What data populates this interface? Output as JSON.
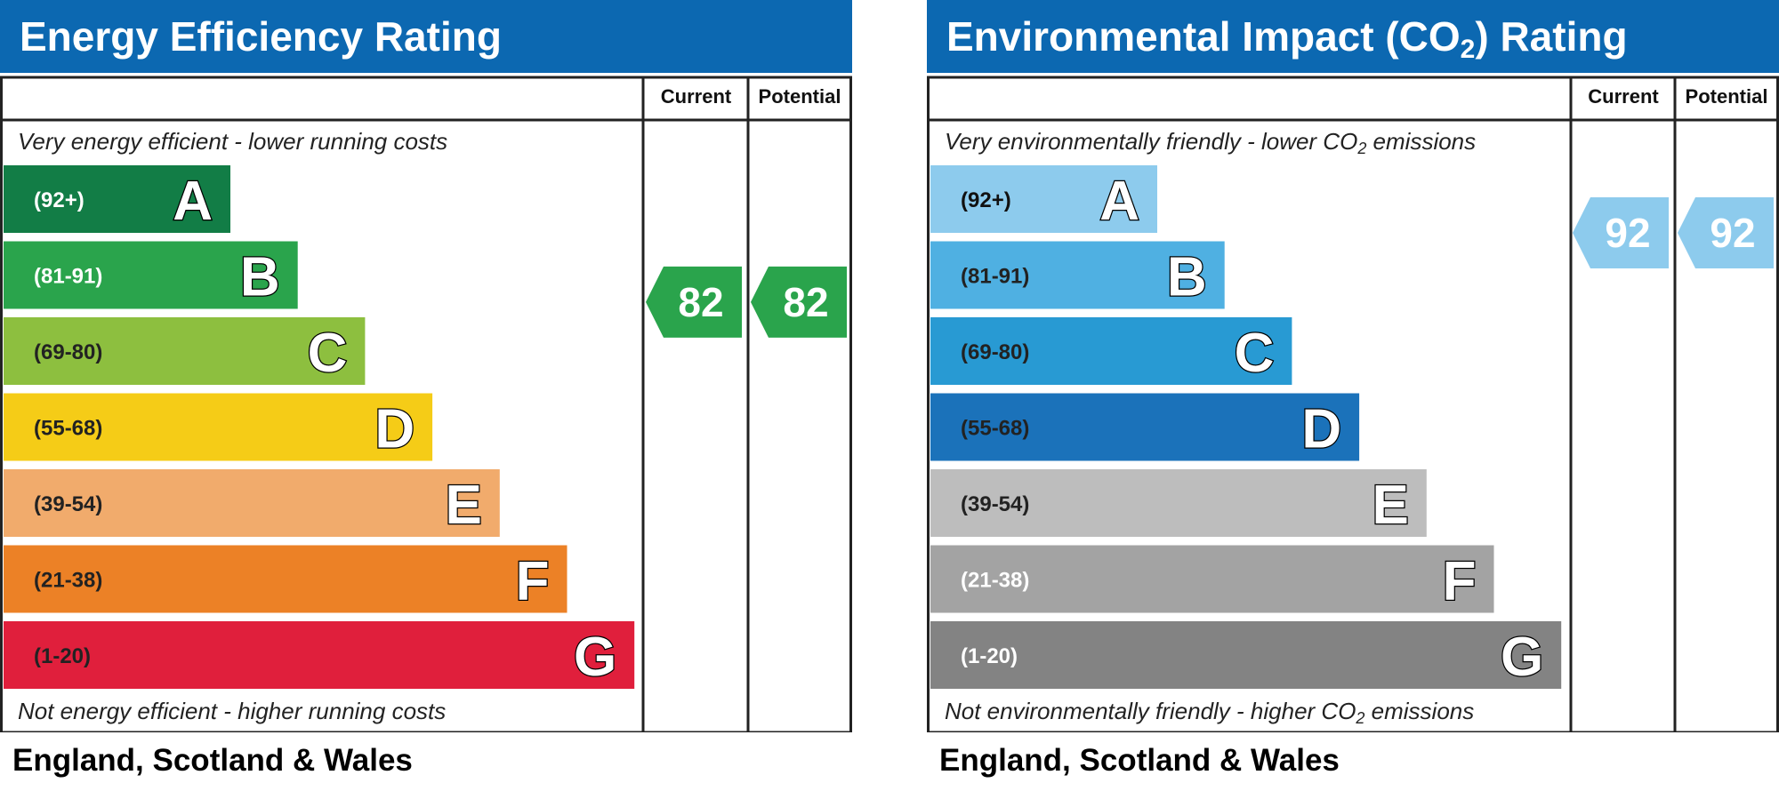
{
  "chart_data": [
    {
      "type": "bar",
      "title": "Energy Efficiency Rating",
      "columns": [
        "Current",
        "Potential"
      ],
      "top_note": "Very energy efficient - lower running costs",
      "bottom_note": "Not energy efficient - higher running costs",
      "footer": "England, Scotland & Wales",
      "bands": [
        {
          "letter": "A",
          "range": "(92+)",
          "min": 92,
          "max": 100,
          "color": "#127d46",
          "label_color": "#ffffff"
        },
        {
          "letter": "B",
          "range": "(81-91)",
          "min": 81,
          "max": 91,
          "color": "#2aa44c",
          "label_color": "#ffffff"
        },
        {
          "letter": "C",
          "range": "(69-80)",
          "min": 69,
          "max": 80,
          "color": "#8dbf3f",
          "label_color": "#222222"
        },
        {
          "letter": "D",
          "range": "(55-68)",
          "min": 55,
          "max": 68,
          "color": "#f5cc17",
          "label_color": "#222222"
        },
        {
          "letter": "E",
          "range": "(39-54)",
          "min": 39,
          "max": 54,
          "color": "#f1ab6c",
          "label_color": "#222222"
        },
        {
          "letter": "F",
          "range": "(21-38)",
          "min": 21,
          "max": 38,
          "color": "#ec8126",
          "label_color": "#222222"
        },
        {
          "letter": "G",
          "range": "(1-20)",
          "min": 1,
          "max": 20,
          "color": "#e01f3c",
          "label_color": "#222222"
        }
      ],
      "current": 82,
      "potential": 82,
      "current_color": "#2aa44c",
      "potential_color": "#2aa44c"
    },
    {
      "type": "bar",
      "title": "Environmental Impact (CO",
      "title_sub": "2",
      "title_suffix": ") Rating",
      "columns": [
        "Current",
        "Potential"
      ],
      "top_note": "Very environmentally friendly - lower CO",
      "top_note_sub": "2",
      "top_note_suffix": " emissions",
      "bottom_note": "Not environmentally friendly - higher CO",
      "bottom_note_sub": "2",
      "bottom_note_suffix": " emissions",
      "footer": "England, Scotland & Wales",
      "bands": [
        {
          "letter": "A",
          "range": "(92+)",
          "min": 92,
          "max": 100,
          "color": "#8dcbed",
          "label_color": "#111111"
        },
        {
          "letter": "B",
          "range": "(81-91)",
          "min": 81,
          "max": 91,
          "color": "#4fb0e2",
          "label_color": "#222222"
        },
        {
          "letter": "C",
          "range": "(69-80)",
          "min": 69,
          "max": 80,
          "color": "#289ad3",
          "label_color": "#222222"
        },
        {
          "letter": "D",
          "range": "(55-68)",
          "min": 55,
          "max": 68,
          "color": "#1b72ba",
          "label_color": "#222222"
        },
        {
          "letter": "E",
          "range": "(39-54)",
          "min": 39,
          "max": 54,
          "color": "#bdbdbd",
          "label_color": "#222222"
        },
        {
          "letter": "F",
          "range": "(21-38)",
          "min": 21,
          "max": 38,
          "color": "#a3a3a3",
          "label_color": "#ffffff"
        },
        {
          "letter": "G",
          "range": "(1-20)",
          "min": 1,
          "max": 20,
          "color": "#838383",
          "label_color": "#ffffff"
        }
      ],
      "current": 92,
      "potential": 92,
      "current_color": "#8dcbed",
      "potential_color": "#8dcbed"
    }
  ]
}
